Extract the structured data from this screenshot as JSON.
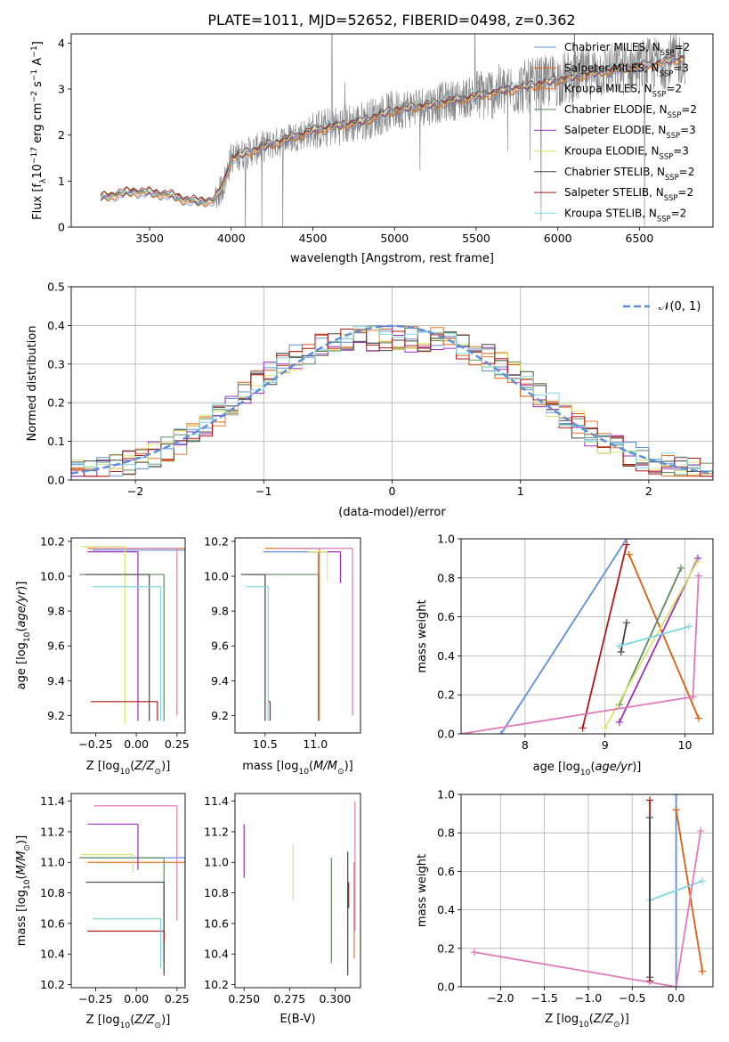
{
  "title": "PLATE=1011, MJD=52652, FIBERID=0498, z=0.362",
  "colors": {
    "Chabrier MILES": "#5f8fd8",
    "Salpeter MILES": "#d95f0e",
    "Kroupa MILES": "#e8782a",
    "Chabrier ELODIE": "#5e8a5e",
    "Salpeter ELODIE": "#9a2fbf",
    "Kroupa ELODIE": "#d6e86c",
    "Chabrier STELIB": "#444444",
    "Salpeter STELIB": "#b01818",
    "Kroupa STELIB": "#7fd6e0"
  },
  "chart_data": [
    {
      "type": "line",
      "xlabel": "wavelength [Angstrom, rest frame]",
      "ylabel": "Flux [f_λ10^-17 erg cm^-2 s^-1 A^-1]",
      "xlim": [
        3020,
        6950
      ],
      "ylim": [
        0,
        4.2
      ],
      "xticks": [
        3500,
        4000,
        4500,
        5000,
        5500,
        6000,
        6500
      ],
      "yticks": [
        0,
        1,
        2,
        3,
        4
      ],
      "grid": false,
      "legend": "upper-right",
      "data_color": "#808080",
      "continuum": {
        "x": [
          3200,
          3400,
          3600,
          3700,
          3800,
          3900,
          3950,
          4000,
          4200,
          4500,
          4800,
          5000,
          5200,
          5500,
          5800,
          6000,
          6300,
          6600,
          6800
        ],
        "y": [
          0.65,
          0.78,
          0.72,
          0.62,
          0.55,
          0.6,
          0.9,
          1.5,
          1.75,
          2.1,
          2.3,
          2.55,
          2.65,
          2.85,
          3.05,
          3.2,
          3.4,
          3.55,
          3.7
        ]
      },
      "series": [
        {
          "name": "Chabrier MILES, N_SSP=2"
        },
        {
          "name": "Salpeter MILES, N_SSP=3"
        },
        {
          "name": "Kroupa MILES, N_SSP=2"
        },
        {
          "name": "Chabrier ELODIE, N_SSP=2"
        },
        {
          "name": "Salpeter ELODIE, N_SSP=3"
        },
        {
          "name": "Kroupa ELODIE, N_SSP=3"
        },
        {
          "name": "Chabrier STELIB, N_SSP=2"
        },
        {
          "name": "Salpeter STELIB, N_SSP=2"
        },
        {
          "name": "Kroupa STELIB, N_SSP=2"
        }
      ]
    },
    {
      "type": "area",
      "xlabel": "(data-model)/error",
      "ylabel": "Normed distribution",
      "xlim": [
        -2.5,
        2.5
      ],
      "ylim": [
        0,
        0.5
      ],
      "xticks": [
        -2,
        -1,
        0,
        1,
        2
      ],
      "yticks": [
        0.0,
        0.1,
        0.2,
        0.3,
        0.4,
        0.5
      ],
      "grid": true,
      "legend": "upper-right",
      "reference_curve": {
        "label": "𝒩(0, 1)",
        "mean": 0,
        "sigma": 1,
        "color": "#5f8fd8"
      },
      "bin_width": 0.1,
      "series": [
        {
          "name": "Chabrier MILES"
        },
        {
          "name": "Salpeter MILES"
        },
        {
          "name": "Kroupa MILES"
        },
        {
          "name": "Chabrier ELODIE"
        },
        {
          "name": "Salpeter ELODIE"
        },
        {
          "name": "Kroupa ELODIE"
        },
        {
          "name": "Chabrier STELIB"
        },
        {
          "name": "Salpeter STELIB"
        },
        {
          "name": "Kroupa STELIB"
        }
      ]
    },
    {
      "type": "scatter",
      "xlabel": "Z [log10(Z/Z☉)]",
      "ylabel": "age  [log10(age/yr)]",
      "xlim": [
        -0.4,
        0.3
      ],
      "ylim": [
        9.1,
        10.22
      ],
      "xticks": [
        -0.25,
        0.0,
        0.25
      ],
      "yticks": [
        9.2,
        9.4,
        9.6,
        9.8,
        10.0,
        10.2
      ],
      "grid": false,
      "points": [
        {
          "x": 0.0,
          "y": 9.3,
          "xerr": 0.3,
          "yerr": 0.1,
          "color": "#5f8fd8",
          "xlo": -0.27,
          "xhi": 0.3,
          "ylo": 9.17,
          "yhi": 10.15
        },
        {
          "x": 0.05,
          "y": 9.49,
          "color": "#e8782a",
          "xlo": -0.3,
          "xhi": 0.3,
          "ylo": 9.17,
          "yhi": 10.16
        },
        {
          "x": 0.1,
          "y": 9.9,
          "color": "#5e8a5e",
          "xlo": -0.35,
          "xhi": 0.17,
          "ylo": 9.17,
          "yhi": 10.01
        },
        {
          "x": 0.0,
          "y": 10.14,
          "color": "#9a2fbf",
          "xlo": -0.3,
          "xhi": 0.01,
          "ylo": 9.17,
          "yhi": 10.14
        },
        {
          "x": -0.1,
          "y": 10.12,
          "color": "#d6e86c",
          "xlo": -0.34,
          "xhi": -0.07,
          "ylo": 9.15,
          "yhi": 10.17
        },
        {
          "x": 0.05,
          "y": 9.29,
          "color": "#444444",
          "xlo": -0.31,
          "xhi": 0.08,
          "ylo": 9.17,
          "yhi": 10.01
        },
        {
          "x": 0.0,
          "y": 9.28,
          "color": "#b01818",
          "xlo": -0.28,
          "xhi": 0.13,
          "ylo": 9.17,
          "yhi": 9.28
        },
        {
          "x": 0.15,
          "y": 9.86,
          "color": "#7fd6e0",
          "xlo": -0.27,
          "xhi": 0.15,
          "ylo": 9.17,
          "yhi": 9.94
        },
        {
          "x": 0.2,
          "y": 10.16,
          "color": "#e07ab8",
          "xlo": -0.26,
          "xhi": 0.25,
          "ylo": 9.2,
          "yhi": 10.16
        }
      ]
    },
    {
      "type": "scatter",
      "xlabel": "mass [log10(M/M☉)]",
      "ylabel": "",
      "xlim": [
        10.2,
        11.45
      ],
      "ylim": [
        9.1,
        10.22
      ],
      "xticks": [
        10.5,
        11.0
      ],
      "yticks": [
        9.2,
        9.4,
        9.6,
        9.8,
        10.0,
        10.2
      ],
      "grid": false,
      "points": [
        {
          "color": "#5f8fd8",
          "xlo": 10.48,
          "xhi": 11.03,
          "ylo": 9.17,
          "yhi": 10.14
        },
        {
          "color": "#e8782a",
          "xlo": 10.5,
          "xhi": 11.04,
          "ylo": 9.17,
          "yhi": 10.16
        },
        {
          "color": "#5e8a5e",
          "xlo": 10.34,
          "xhi": 11.03,
          "ylo": 9.17,
          "yhi": 10.01
        },
        {
          "color": "#9a2fbf",
          "xlo": 10.95,
          "xhi": 11.25,
          "ylo": 9.96,
          "yhi": 10.14
        },
        {
          "color": "#d6e86c",
          "xlo": 10.93,
          "xhi": 11.12,
          "ylo": 9.97,
          "yhi": 10.14
        },
        {
          "color": "#444444",
          "xlo": 10.26,
          "xhi": 10.5,
          "ylo": 9.17,
          "yhi": 10.01
        },
        {
          "color": "#b01818",
          "xlo": 10.53,
          "xhi": 10.55,
          "ylo": 9.17,
          "yhi": 9.28
        },
        {
          "color": "#7fd6e0",
          "xlo": 10.31,
          "xhi": 10.53,
          "ylo": 9.17,
          "yhi": 9.94
        },
        {
          "color": "#e07ab8",
          "xlo": 10.62,
          "xhi": 11.37,
          "ylo": 9.2,
          "yhi": 10.16
        }
      ]
    },
    {
      "type": "line",
      "xlabel": "age  [log10(age/yr)]",
      "ylabel": "mass weight",
      "xlim": [
        7.2,
        10.35
      ],
      "ylim": [
        0,
        1.0
      ],
      "xticks": [
        8,
        9,
        10
      ],
      "yticks": [
        0.0,
        0.2,
        0.4,
        0.6,
        0.8,
        1.0
      ],
      "grid": true,
      "series": [
        {
          "name": "Chabrier MILES",
          "x": [
            7.7,
            9.27
          ],
          "y": [
            0.0,
            1.0
          ]
        },
        {
          "name": "Salpeter MILES",
          "x": [
            9.3,
            10.17
          ],
          "y": [
            0.92,
            0.08
          ]
        },
        {
          "name": "Chabrier ELODIE",
          "x": [
            9.18,
            9.95
          ],
          "y": [
            0.15,
            0.85
          ]
        },
        {
          "name": "Salpeter ELODIE",
          "x": [
            9.18,
            10.16
          ],
          "y": [
            0.06,
            0.9
          ]
        },
        {
          "name": "Kroupa ELODIE",
          "x": [
            9.0,
            10.15
          ],
          "y": [
            0.03,
            0.88
          ]
        },
        {
          "name": "Chabrier STELIB",
          "x": [
            9.2,
            9.27
          ],
          "y": [
            0.42,
            0.57
          ]
        },
        {
          "name": "Salpeter STELIB",
          "x": [
            8.72,
            9.27
          ],
          "y": [
            0.03,
            0.97
          ]
        },
        {
          "name": "Kroupa STELIB",
          "x": [
            9.18,
            10.05
          ],
          "y": [
            0.45,
            0.55
          ]
        },
        {
          "name": "Kroupa MILES pink",
          "x": [
            7.2,
            10.1,
            10.17
          ],
          "y": [
            0.0,
            0.19,
            0.81
          ]
        }
      ]
    },
    {
      "type": "scatter",
      "xlabel": "Z [log10(Z/Z☉)]",
      "ylabel": "mass [log10(M/M☉)]",
      "xlim": [
        -0.4,
        0.3
      ],
      "ylim": [
        10.18,
        11.45
      ],
      "xticks": [
        -0.25,
        0.0,
        0.25
      ],
      "yticks": [
        10.2,
        10.4,
        10.6,
        10.8,
        11.0,
        11.2,
        11.4
      ],
      "grid": false,
      "points": [
        {
          "color": "#5f8fd8",
          "xlo": -0.3,
          "xhi": 0.3,
          "ylo": 10.2,
          "yhi": 11.03,
          "x": 0.0,
          "y": 10.48
        },
        {
          "color": "#e8782a",
          "xlo": -0.3,
          "xhi": 0.3,
          "ylo": 10.2,
          "yhi": 11.0,
          "x": 0.05,
          "y": 10.55
        },
        {
          "color": "#5e8a5e",
          "xlo": -0.35,
          "xhi": 0.17,
          "ylo": 10.34,
          "yhi": 11.03,
          "x": 0.1,
          "y": 10.85
        },
        {
          "color": "#9a2fbf",
          "xlo": -0.3,
          "xhi": 0.01,
          "ylo": 10.95,
          "yhi": 11.25,
          "x": -0.3,
          "y": 11.12
        },
        {
          "color": "#d6e86c",
          "xlo": -0.34,
          "xhi": -0.02,
          "ylo": 10.93,
          "yhi": 11.05,
          "x": -0.3,
          "y": 11.0
        },
        {
          "color": "#444444",
          "xlo": -0.31,
          "xhi": 0.17,
          "ylo": 10.26,
          "yhi": 10.87,
          "x": 0.05,
          "y": 10.33
        },
        {
          "color": "#b01818",
          "xlo": -0.3,
          "xhi": 0.17,
          "ylo": 10.48,
          "yhi": 10.55,
          "x": 0.0,
          "y": 10.5
        },
        {
          "color": "#7fd6e0",
          "xlo": -0.27,
          "xhi": 0.15,
          "ylo": 10.31,
          "yhi": 10.63,
          "x": 0.15,
          "y": 10.58
        },
        {
          "color": "#e07ab8",
          "xlo": -0.26,
          "xhi": 0.25,
          "ylo": 10.62,
          "yhi": 11.37,
          "x": 0.2,
          "y": 11.37
        }
      ]
    },
    {
      "type": "scatter",
      "xlabel": "E(B-V)",
      "ylabel": "",
      "xlim": [
        0.245,
        0.314
      ],
      "ylim": [
        10.18,
        11.45
      ],
      "xticks": [
        0.25,
        0.275,
        0.3
      ],
      "yticks": [
        10.2,
        10.4,
        10.6,
        10.8,
        11.0,
        11.2,
        11.4
      ],
      "grid": false,
      "points": [
        {
          "color": "#9a2fbf",
          "x": 0.25,
          "ylo": 10.9,
          "yhi": 11.25
        },
        {
          "color": "#d6e86c",
          "x": 0.277,
          "ylo": 10.75,
          "yhi": 11.12
        },
        {
          "color": "#5e8a5e",
          "x": 0.298,
          "ylo": 10.34,
          "yhi": 11.03
        },
        {
          "color": "#444444",
          "x": 0.307,
          "ylo": 10.26,
          "yhi": 11.07
        },
        {
          "color": "#b01818",
          "x": 0.3075,
          "ylo": 10.7,
          "yhi": 10.87
        },
        {
          "color": "#e8782a",
          "x": 0.3105,
          "ylo": 10.37,
          "yhi": 11.0
        },
        {
          "color": "#e07ab8",
          "x": 0.311,
          "ylo": 10.55,
          "yhi": 11.4
        }
      ]
    },
    {
      "type": "line",
      "xlabel": "Z [log10(Z/Z☉)]",
      "ylabel": "mass weight",
      "xlim": [
        -2.45,
        0.42
      ],
      "ylim": [
        0,
        1.0
      ],
      "xticks": [
        -2.0,
        -1.5,
        -1.0,
        -0.5,
        0.0
      ],
      "yticks": [
        0.0,
        0.2,
        0.4,
        0.6,
        0.8,
        1.0
      ],
      "grid": true,
      "series": [
        {
          "name": "Chabrier MILES",
          "x": [
            0.0,
            0.0
          ],
          "y": [
            0.0,
            1.0
          ]
        },
        {
          "name": "Salpeter MILES",
          "x": [
            0.0,
            0.3
          ],
          "y": [
            0.92,
            0.08
          ]
        },
        {
          "name": "Kroupa STELIB",
          "x": [
            -0.3,
            0.3
          ],
          "y": [
            0.45,
            0.55
          ]
        },
        {
          "name": "Salpeter STELIB",
          "x": [
            -0.3,
            -0.3
          ],
          "y": [
            0.03,
            0.97
          ]
        },
        {
          "name": "Chabrier STELIB",
          "x": [
            -0.3,
            -0.3
          ],
          "y": [
            0.05,
            0.88
          ]
        },
        {
          "name": "Kroupa MILES pink",
          "x": [
            -2.3,
            0.0,
            0.28
          ],
          "y": [
            0.18,
            0.0,
            0.81
          ]
        }
      ]
    }
  ]
}
